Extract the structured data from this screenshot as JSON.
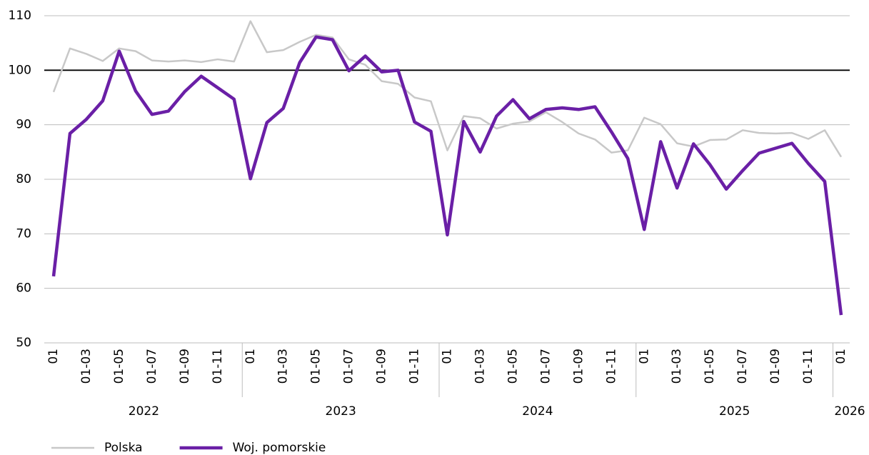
{
  "chart_data": {
    "type": "line",
    "categories": [
      "01",
      null,
      "01-03",
      null,
      "01-05",
      null,
      "01-07",
      null,
      "01-09",
      null,
      "01-11",
      null,
      "01",
      null,
      "01-03",
      null,
      "01-05",
      null,
      "01-07",
      null,
      "01-09",
      null,
      "01-11",
      null,
      "01",
      null,
      "01-03",
      null,
      "01-05",
      null,
      "01-07",
      null,
      "01-09",
      null,
      "01-11",
      null,
      "01",
      null,
      "01-03",
      null,
      "01-05",
      null,
      "01-07",
      null,
      "01-09",
      null,
      "01-11",
      null,
      "01"
    ],
    "groups": [
      "2022",
      "2023",
      "2024",
      "2025",
      "2026"
    ],
    "series": [
      {
        "name": "Polska",
        "color": "#c8c8c8",
        "width": 2.5,
        "values": [
          96,
          104,
          103,
          101.7,
          104,
          103.5,
          101.8,
          101.6,
          101.8,
          101.5,
          102,
          101.6,
          109,
          103.3,
          103.7,
          105.2,
          106.5,
          106,
          102,
          101,
          98,
          97.5,
          95,
          94.3,
          85.3,
          91.6,
          91.2,
          89.3,
          90.2,
          90.6,
          92.3,
          90.5,
          88.4,
          87.3,
          84.9,
          85.3,
          91.3,
          90.1,
          86.6,
          86,
          87.2,
          87.3,
          89,
          88.5,
          88.4,
          88.5,
          87.4,
          89,
          84.1
        ]
      },
      {
        "name": "Woj. pomorskie",
        "color": "#6a1fa6",
        "width": 4.5,
        "values": [
          62.2,
          88.4,
          91,
          94.4,
          103.5,
          96.2,
          91.9,
          92.5,
          96.1,
          98.9,
          96.8,
          94.7,
          80.1,
          90.4,
          93,
          101.4,
          106.1,
          105.6,
          99.9,
          102.6,
          99.7,
          100,
          90.5,
          88.8,
          69.8,
          90.6,
          85,
          91.6,
          94.6,
          91.1,
          92.8,
          93.1,
          92.8,
          93.3,
          88.7,
          83.8,
          70.8,
          86.9,
          78.4,
          86.5,
          82.7,
          78.2,
          81.6,
          84.8,
          85.7,
          86.6,
          82.9,
          79.6,
          55.1
        ]
      }
    ],
    "reference_line": 100,
    "ylim": [
      50,
      110
    ],
    "yticks": [
      50,
      60,
      70,
      80,
      90,
      100,
      110
    ],
    "grid": true,
    "legend": "bottom-left"
  }
}
